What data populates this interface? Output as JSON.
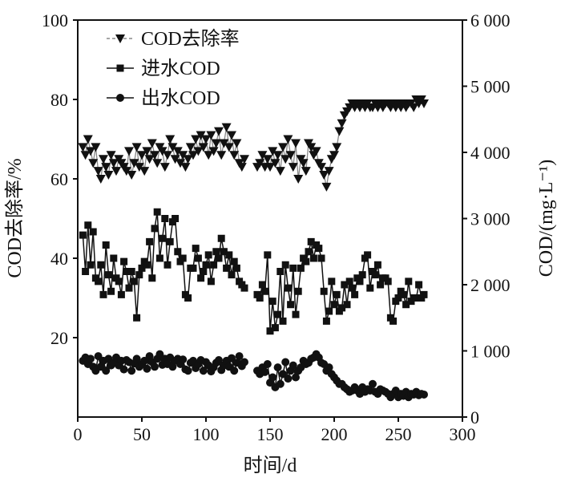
{
  "chart_data": {
    "type": "line",
    "xlabel": "时间/d",
    "ylabel_left": "COD去除率/%",
    "ylabel_right": "COD/(mg·L⁻¹)",
    "xlim": [
      0,
      300
    ],
    "ylim_left": [
      0,
      100
    ],
    "ylim_right": [
      0,
      6000
    ],
    "x_ticks": [
      "0",
      "50",
      "100",
      "150",
      "200",
      "250",
      "300"
    ],
    "y_left_ticks": [
      "20",
      "40",
      "60",
      "80",
      "100"
    ],
    "y_right_ticks": [
      "0",
      "1 000",
      "2 000",
      "3 000",
      "4 000",
      "5 000",
      "6 000"
    ],
    "legend_position": "top-left",
    "colors": {
      "series": "#111111",
      "link_line": "#888888"
    },
    "series": [
      {
        "name": "COD去除率",
        "axis": "left",
        "marker": "triangle-down",
        "segments": [
          {
            "x": [
              4,
              6,
              8,
              10,
              12,
              14,
              16,
              18,
              20,
              22,
              24,
              26,
              28,
              30,
              32,
              34,
              36,
              38,
              40,
              42,
              44,
              46,
              48,
              50,
              52,
              54,
              56,
              58,
              60,
              62,
              64,
              66,
              68,
              70,
              72,
              74,
              76,
              78,
              80,
              82,
              84,
              86,
              88,
              90,
              92,
              94,
              96,
              98,
              100,
              102,
              104,
              106,
              108,
              110,
              112,
              114,
              116,
              118,
              120,
              122,
              124,
              126,
              128,
              130
            ],
            "y": [
              68,
              66,
              70,
              67,
              64,
              68,
              62,
              60,
              65,
              63,
              61,
              66,
              64,
              62,
              65,
              64,
              63,
              62,
              67,
              61,
              64,
              68,
              63,
              66,
              62,
              67,
              65,
              69,
              66,
              64,
              68,
              67,
              63,
              66,
              70,
              68,
              65,
              67,
              64,
              66,
              63,
              65,
              68,
              66,
              70,
              67,
              71,
              68,
              70,
              66,
              71,
              67,
              69,
              72,
              66,
              69,
              73,
              68,
              71,
              66,
              69,
              64,
              63,
              65
            ]
          },
          {
            "x": [
              140,
              142,
              144,
              146,
              148,
              150,
              152,
              154,
              156,
              158,
              160,
              162,
              164,
              166,
              168,
              170,
              172,
              174,
              176,
              178,
              180,
              182,
              184,
              186,
              188,
              190,
              192,
              194,
              196,
              198,
              200,
              202,
              204,
              206,
              208,
              210,
              212,
              214,
              216,
              218,
              220,
              222,
              224,
              226,
              228,
              230,
              232,
              234,
              236,
              238,
              240,
              242,
              244,
              246,
              248,
              250,
              252,
              254,
              256,
              258,
              260,
              262,
              264,
              266,
              268,
              270
            ],
            "y": [
              63,
              64,
              66,
              63,
              65,
              63,
              67,
              64,
              66,
              62,
              68,
              65,
              70,
              66,
              63,
              69,
              60,
              65,
              64,
              62,
              69,
              68,
              66,
              67,
              64,
              63,
              61,
              58,
              62,
              65,
              66,
              68,
              72,
              74,
              76,
              77,
              78,
              79,
              78,
              79,
              78,
              79,
              78,
              79,
              78,
              78,
              79,
              78,
              79,
              78,
              79,
              79,
              78,
              79,
              78,
              79,
              78,
              79,
              78,
              79,
              79,
              78,
              80,
              79,
              80,
              79
            ]
          }
        ]
      },
      {
        "name": "进水COD",
        "axis": "right",
        "marker": "square",
        "segments": [
          {
            "x": [
              4,
              6,
              8,
              10,
              12,
              14,
              16,
              18,
              20,
              22,
              24,
              26,
              28,
              30,
              32,
              34,
              36,
              38,
              40,
              42,
              44,
              46,
              48,
              50,
              52,
              54,
              56,
              58,
              60,
              62,
              64,
              66,
              68,
              70,
              72,
              74,
              76,
              78,
              80,
              82,
              84,
              86,
              88,
              90,
              92,
              94,
              96,
              98,
              100,
              102,
              104,
              106,
              108,
              110,
              112,
              114,
              116,
              118,
              120,
              122,
              124,
              126,
              128,
              130
            ],
            "y": [
              2750,
              2200,
              2900,
              2300,
              2800,
              2100,
              2050,
              2300,
              1850,
              2600,
              2150,
              1900,
              2400,
              2100,
              2050,
              1850,
              2350,
              2200,
              1950,
              2200,
              2050,
              1500,
              2150,
              2250,
              2350,
              2300,
              2650,
              2100,
              2850,
              3100,
              2400,
              2700,
              3000,
              2300,
              2650,
              2950,
              3000,
              2500,
              2350,
              2400,
              1850,
              1800,
              2250,
              2250,
              2550,
              2400,
              2100,
              2200,
              2300,
              2450,
              2050,
              2300,
              2500,
              2400,
              2700,
              2500,
              2250,
              2450,
              2150,
              2350,
              2250,
              2050,
              2000,
              1950
            ]
          },
          {
            "x": [
              140,
              142,
              144,
              146,
              148,
              150,
              152,
              154,
              156,
              158,
              160,
              162,
              164,
              166,
              168,
              170,
              172,
              174,
              176,
              178,
              180,
              182,
              184,
              186,
              188,
              190,
              192,
              194,
              196,
              198,
              200,
              202,
              204,
              206,
              208,
              210,
              212,
              214,
              216,
              218,
              220,
              222,
              224,
              226,
              228,
              230,
              232,
              234,
              236,
              238,
              240,
              242,
              244,
              246,
              248,
              250,
              252,
              254,
              256,
              258,
              260,
              262,
              264,
              266,
              268,
              270
            ],
            "y": [
              1850,
              1800,
              2000,
              1900,
              2450,
              1300,
              1750,
              1350,
              1550,
              2200,
              1450,
              2300,
              1950,
              1700,
              2250,
              1550,
              1900,
              2250,
              2400,
              2350,
              2500,
              2650,
              2400,
              2600,
              2550,
              2400,
              1900,
              1450,
              1600,
              2050,
              1700,
              1850,
              1600,
              1650,
              2000,
              1700,
              2050,
              1950,
              1850,
              2100,
              2050,
              2150,
              2400,
              2450,
              1950,
              2200,
              2150,
              2300,
              2000,
              2100,
              2100,
              2050,
              1500,
              1450,
              1750,
              1800,
              1900,
              1850,
              1700,
              2050,
              1750,
              1800,
              1800,
              2000,
              1800,
              1850
            ]
          }
        ]
      },
      {
        "name": "出水COD",
        "axis": "right",
        "marker": "circle",
        "segments": [
          {
            "x": [
              4,
              6,
              8,
              10,
              12,
              14,
              16,
              18,
              20,
              22,
              24,
              26,
              28,
              30,
              32,
              34,
              36,
              38,
              40,
              42,
              44,
              46,
              48,
              50,
              52,
              54,
              56,
              58,
              60,
              62,
              64,
              66,
              68,
              70,
              72,
              74,
              76,
              78,
              80,
              82,
              84,
              86,
              88,
              90,
              92,
              94,
              96,
              98,
              100,
              102,
              104,
              106,
              108,
              110,
              112,
              114,
              116,
              118,
              120,
              122,
              124,
              126,
              128,
              130
            ],
            "y": [
              850,
              900,
              800,
              880,
              760,
              700,
              920,
              760,
              850,
              700,
              880,
              780,
              820,
              900,
              780,
              850,
              720,
              860,
              830,
              700,
              810,
              880,
              760,
              800,
              850,
              730,
              920,
              830,
              760,
              880,
              950,
              790,
              880,
              800,
              900,
              760,
              850,
              880,
              800,
              870,
              720,
              700,
              820,
              850,
              740,
              800,
              860,
              700,
              830,
              780,
              690,
              750,
              820,
              860,
              710,
              780,
              850,
              760,
              890,
              700,
              820,
              920,
              770,
              830
            ]
          },
          {
            "x": [
              140,
              142,
              144,
              146,
              148,
              150,
              152,
              154,
              156,
              158,
              160,
              162,
              164,
              166,
              168,
              170,
              172,
              174,
              176,
              178,
              180,
              182,
              184,
              186,
              188,
              190,
              192,
              194,
              196,
              198,
              200,
              202,
              204,
              206,
              208,
              210,
              212,
              214,
              216,
              218,
              220,
              222,
              224,
              226,
              228,
              230,
              232,
              234,
              236,
              238,
              240,
              242,
              244,
              246,
              248,
              250,
              252,
              254,
              256,
              258,
              260,
              262,
              264,
              266,
              268,
              270
            ],
            "y": [
              700,
              650,
              750,
              680,
              800,
              520,
              600,
              450,
              750,
              500,
              650,
              830,
              580,
              700,
              780,
              600,
              700,
              750,
              850,
              800,
              820,
              880,
              900,
              950,
              900,
              820,
              800,
              700,
              750,
              650,
              600,
              550,
              500,
              500,
              450,
              420,
              380,
              400,
              450,
              400,
              350,
              450,
              380,
              420,
              400,
              500,
              380,
              350,
              420,
              400,
              380,
              350,
              300,
              350,
              400,
              300,
              350,
              320,
              380,
              300,
              350,
              340,
              380,
              330,
              350,
              340
            ]
          }
        ]
      }
    ]
  }
}
